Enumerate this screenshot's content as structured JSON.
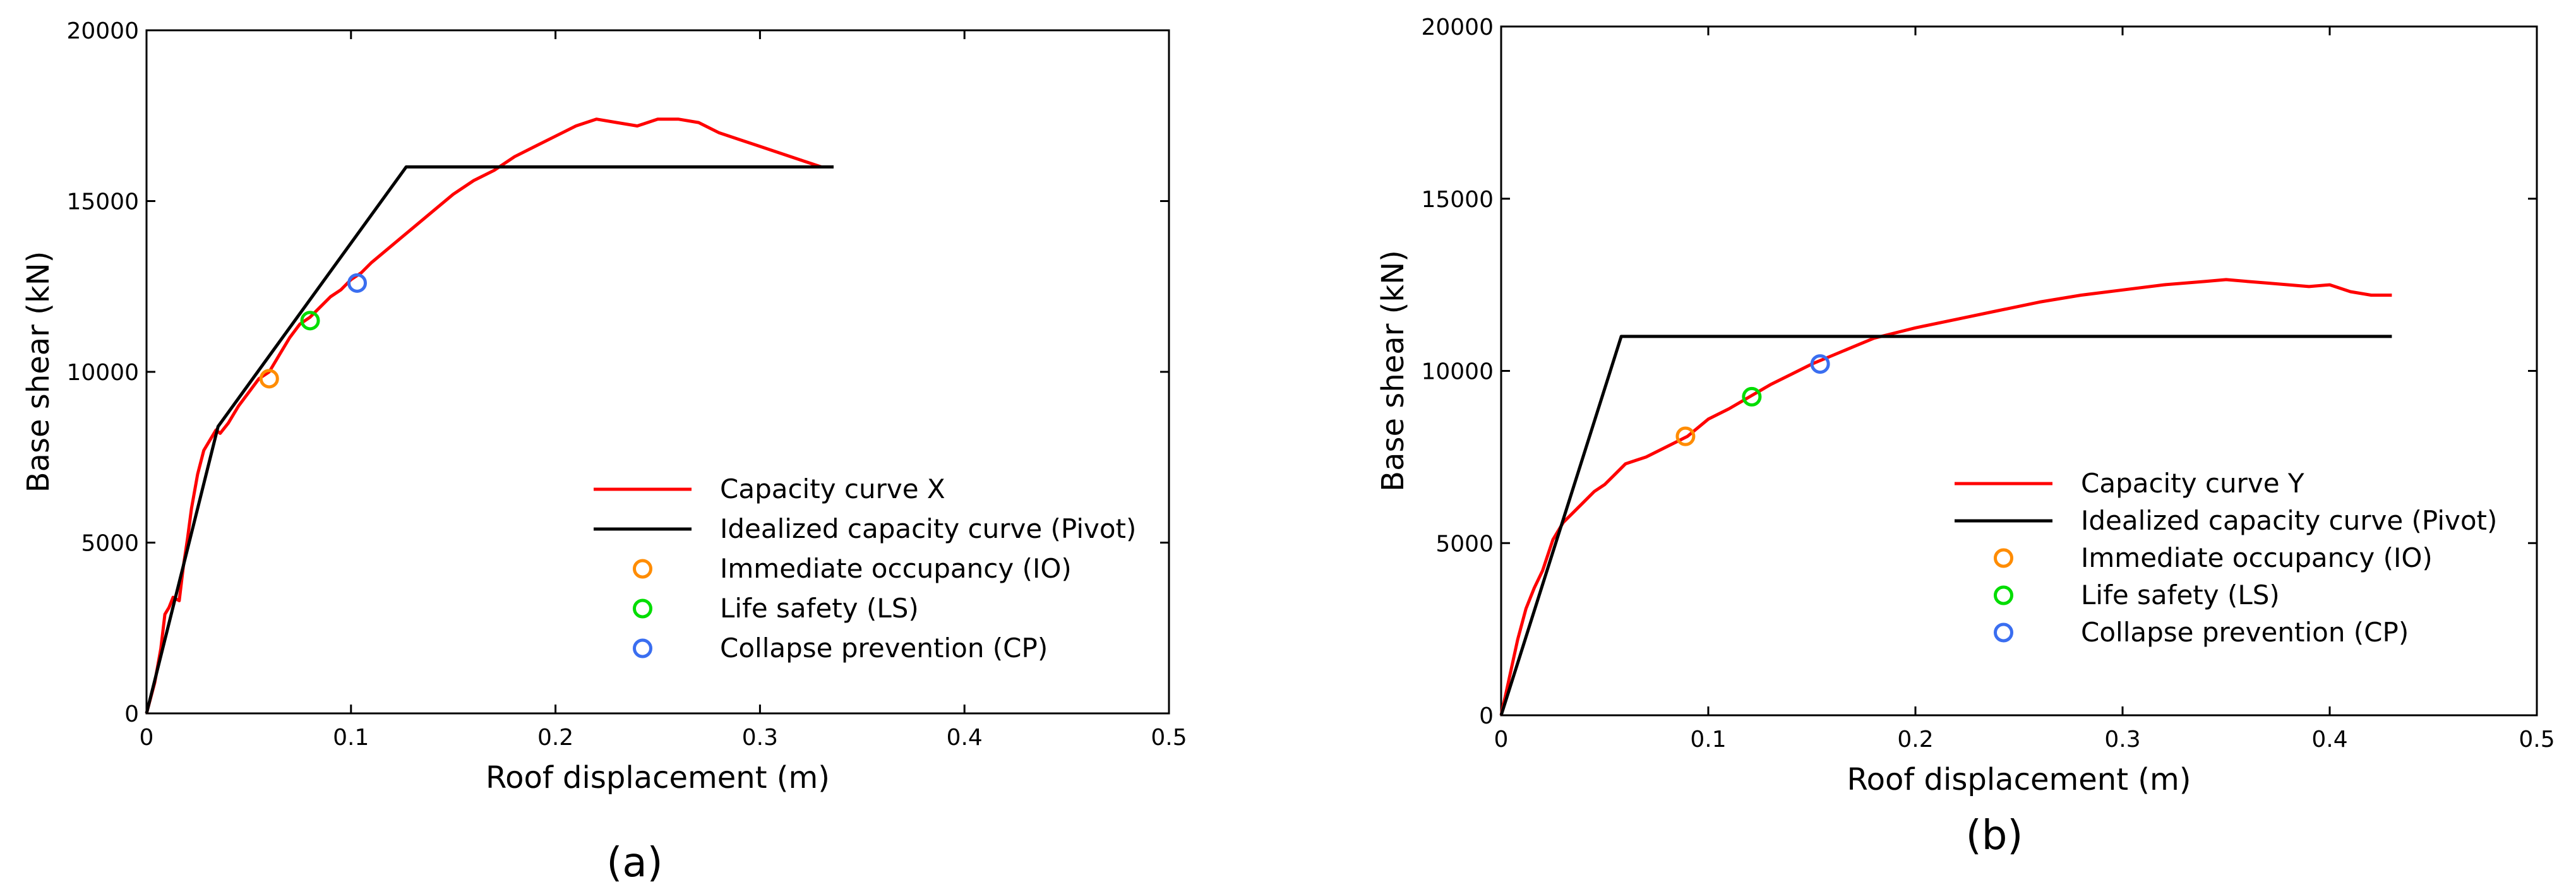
{
  "chart_data": [
    {
      "type": "line",
      "panel_label": "(a)",
      "title": "",
      "xlabel": "Roof displacement (m)",
      "ylabel": "Base shear (kN)",
      "xlim": [
        0,
        0.5
      ],
      "ylim": [
        0,
        20000
      ],
      "xticks": [
        "0",
        "0.1",
        "0.2",
        "0.3",
        "0.4",
        "0.5"
      ],
      "yticks": [
        "0",
        "5000",
        "10000",
        "15000",
        "20000"
      ],
      "grid": false,
      "legend_position": "bottom-right",
      "colors": {
        "capacity": "#ff0000",
        "idealized": "#000000",
        "io": "#ff8c00",
        "ls": "#00dd00",
        "cp": "#3a6ef0"
      },
      "series": [
        {
          "name": "Capacity curve  X",
          "kind": "line",
          "color_key": "capacity",
          "x": [
            0,
            0.004,
            0.007,
            0.009,
            0.011,
            0.013,
            0.016,
            0.018,
            0.02,
            0.022,
            0.025,
            0.028,
            0.031,
            0.034,
            0.036,
            0.04,
            0.045,
            0.05,
            0.055,
            0.06,
            0.065,
            0.07,
            0.075,
            0.08,
            0.085,
            0.09,
            0.095,
            0.1,
            0.105,
            0.11,
            0.12,
            0.13,
            0.14,
            0.15,
            0.16,
            0.17,
            0.18,
            0.19,
            0.2,
            0.21,
            0.22,
            0.23,
            0.24,
            0.25,
            0.26,
            0.27,
            0.28,
            0.29,
            0.3,
            0.31,
            0.32,
            0.33
          ],
          "y": [
            0,
            900,
            1900,
            2900,
            3100,
            3400,
            3300,
            4300,
            5100,
            6000,
            7000,
            7700,
            8000,
            8300,
            8200,
            8500,
            9000,
            9400,
            9800,
            10000,
            10500,
            11000,
            11400,
            11600,
            11900,
            12200,
            12400,
            12700,
            12900,
            13200,
            13700,
            14200,
            14700,
            15200,
            15600,
            15900,
            16300,
            16600,
            16900,
            17200,
            17400,
            17300,
            17200,
            17400,
            17400,
            17300,
            17000,
            16800,
            16600,
            16400,
            16200,
            16000
          ]
        },
        {
          "name": "Idealized capacity curve (Pivot)",
          "kind": "line",
          "color_key": "idealized",
          "x": [
            0,
            0.035,
            0.127,
            0.336
          ],
          "y": [
            0,
            8400,
            16000,
            16000
          ]
        },
        {
          "name": "Immediate occupancy (IO)",
          "kind": "marker",
          "color_key": "io",
          "x": [
            0.06
          ],
          "y": [
            9800
          ]
        },
        {
          "name": "Life safety (LS)",
          "kind": "marker",
          "color_key": "ls",
          "x": [
            0.08
          ],
          "y": [
            11500
          ]
        },
        {
          "name": "Collapse prevention (CP)",
          "kind": "marker",
          "color_key": "cp",
          "x": [
            0.103
          ],
          "y": [
            12600
          ]
        }
      ]
    },
    {
      "type": "line",
      "panel_label": "(b)",
      "title": "",
      "xlabel": "Roof displacement (m)",
      "ylabel": "Base shear (kN)",
      "xlim": [
        0,
        0.5
      ],
      "ylim": [
        0,
        20000
      ],
      "xticks": [
        "0",
        "0.1",
        "0.2",
        "0.3",
        "0.4",
        "0.5"
      ],
      "yticks": [
        "0",
        "5000",
        "10000",
        "15000",
        "20000"
      ],
      "grid": false,
      "legend_position": "right",
      "colors": {
        "capacity": "#ff0000",
        "idealized": "#000000",
        "io": "#ff8c00",
        "ls": "#00dd00",
        "cp": "#3a6ef0"
      },
      "series": [
        {
          "name": "Capacity curve  Y",
          "kind": "line",
          "color_key": "capacity",
          "x": [
            0,
            0.004,
            0.008,
            0.012,
            0.016,
            0.02,
            0.025,
            0.03,
            0.035,
            0.04,
            0.045,
            0.05,
            0.055,
            0.06,
            0.065,
            0.07,
            0.08,
            0.09,
            0.1,
            0.11,
            0.12,
            0.13,
            0.14,
            0.15,
            0.16,
            0.17,
            0.18,
            0.19,
            0.2,
            0.22,
            0.24,
            0.26,
            0.28,
            0.3,
            0.32,
            0.34,
            0.35,
            0.36,
            0.37,
            0.38,
            0.39,
            0.4,
            0.41,
            0.42,
            0.43
          ],
          "y": [
            0,
            1100,
            2200,
            3100,
            3700,
            4200,
            5100,
            5600,
            5900,
            6200,
            6500,
            6700,
            7000,
            7300,
            7400,
            7500,
            7800,
            8100,
            8600,
            8900,
            9250,
            9600,
            9900,
            10200,
            10450,
            10700,
            10950,
            11100,
            11250,
            11500,
            11750,
            12000,
            12200,
            12350,
            12500,
            12600,
            12650,
            12600,
            12550,
            12500,
            12450,
            12500,
            12300,
            12200,
            12200
          ]
        },
        {
          "name": "Idealized capacity curve (Pivot)",
          "kind": "line",
          "color_key": "idealized",
          "x": [
            0,
            0.058,
            0.43
          ],
          "y": [
            0,
            11000,
            11000
          ]
        },
        {
          "name": "Immediate occupancy (IO)",
          "kind": "marker",
          "color_key": "io",
          "x": [
            0.089
          ],
          "y": [
            8100
          ]
        },
        {
          "name": "Life safety (LS)",
          "kind": "marker",
          "color_key": "ls",
          "x": [
            0.121
          ],
          "y": [
            9250
          ]
        },
        {
          "name": "Collapse prevention (CP)",
          "kind": "marker",
          "color_key": "cp",
          "x": [
            0.154
          ],
          "y": [
            10200
          ]
        }
      ]
    }
  ]
}
